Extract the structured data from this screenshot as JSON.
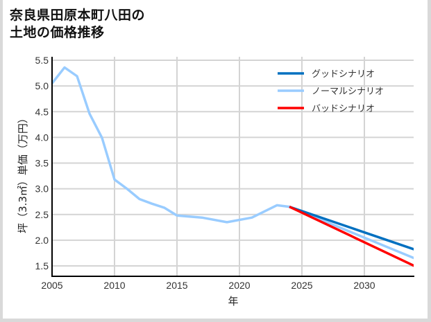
{
  "title_lines": [
    "奈良県田原本町八田の",
    "土地の価格推移"
  ],
  "chart_data": {
    "type": "line",
    "title": "奈良県田原本町八田の土地の価格推移",
    "xlabel": "年",
    "ylabel": "坪（3.3㎡）単価（万円）",
    "xlim": [
      2005,
      2034
    ],
    "ylim": [
      1.3,
      5.55
    ],
    "x_ticks": [
      2005,
      2010,
      2015,
      2020,
      2025,
      2030
    ],
    "y_ticks": [
      1.5,
      2.0,
      2.5,
      3.0,
      3.5,
      4.0,
      4.5,
      5.0,
      5.5
    ],
    "y_tick_labels": [
      "1.5",
      "2.0",
      "2.5",
      "3.0",
      "3.5",
      "4.0",
      "4.5",
      "5.0",
      "5.5"
    ],
    "grid": true,
    "legend_position": "upper right",
    "series": [
      {
        "name": "グッドシナリオ",
        "color": "#0070c0",
        "x": [
          2024,
          2034
        ],
        "values": [
          2.65,
          1.82
        ]
      },
      {
        "name": "ノーマルシナリオ",
        "color": "#99ccff",
        "x": [
          2005,
          2006,
          2007,
          2008,
          2009,
          2010,
          2011,
          2012,
          2013,
          2014,
          2015,
          2017,
          2019,
          2021,
          2023,
          2024,
          2034
        ],
        "values": [
          5.05,
          5.36,
          5.19,
          4.46,
          3.99,
          3.18,
          3.0,
          2.8,
          2.71,
          2.63,
          2.48,
          2.44,
          2.35,
          2.44,
          2.68,
          2.65,
          1.65
        ]
      },
      {
        "name": "バッドシナリオ",
        "color": "#ff0000",
        "x": [
          2024,
          2034
        ],
        "values": [
          2.65,
          1.5
        ]
      }
    ]
  }
}
